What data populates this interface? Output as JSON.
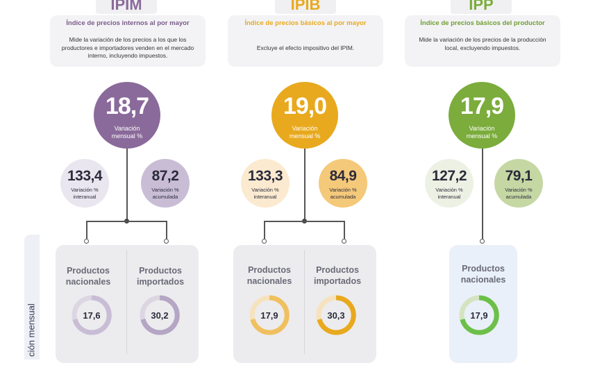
{
  "indices": [
    {
      "tab": "IPIM",
      "subtitle": "Índice de precios internos al por mayor",
      "description": "Mide la variación de los precios a los que los productores e importadores venden en el mercado interno, incluyendo impuestos.",
      "main_value": "18,7",
      "main_label": "Variación mensual %",
      "interanual": "133,4",
      "interanual_label": "Variación % interanual",
      "acumulada": "87,2",
      "acumulada_label": "Variación % acumulada",
      "products": [
        {
          "label": "Productos nacionales",
          "value": "17,6"
        },
        {
          "label": "Productos importados",
          "value": "30,2"
        }
      ]
    },
    {
      "tab": "IPIB",
      "subtitle": "Índice de precios básicos al por mayor",
      "description": "Excluye el efecto impositivo del IPIM.",
      "main_value": "19,0",
      "main_label": "Variación mensual %",
      "interanual": "133,3",
      "interanual_label": "Variación % interanual",
      "acumulada": "84,9",
      "acumulada_label": "Variación % acumulada",
      "products": [
        {
          "label": "Productos nacionales",
          "value": "17,9"
        },
        {
          "label": "Productos importados",
          "value": "30,3"
        }
      ]
    },
    {
      "tab": "IPP",
      "subtitle": "Índice de precios básicos del productor",
      "description": "Mide la variación de los precios de la producción local, excluyendo impuestos.",
      "main_value": "17,9",
      "main_label": "Variación mensual %",
      "interanual": "127,2",
      "interanual_label": "Variación % interanual",
      "acumulada": "79,1",
      "acumulada_label": "Variación % acumulada",
      "products": [
        {
          "label": "Productos nacionales",
          "value": "17,9"
        }
      ]
    }
  ],
  "side_label": "ción mensual",
  "colors": {
    "ipim": "#8a6a9a",
    "ipim_light": "#eae6ef",
    "ipim_mid": "#c9bdd6",
    "ipib": "#e8a91e",
    "ipib_light": "#fbead0",
    "ipib_mid": "#f5c97a",
    "ipp": "#7bac3c",
    "ipp_light": "#edf1e4",
    "ipp_mid": "#c5d8a4"
  }
}
